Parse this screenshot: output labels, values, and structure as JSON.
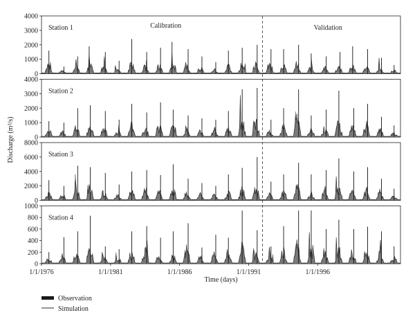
{
  "chart_data": {
    "type": "area",
    "x_range": [
      "1/1/1976",
      "12/31/2001"
    ],
    "x_ticks": [
      "1/1/1976",
      "1/1/1981",
      "1/1/1986",
      "1/1/1991",
      "1/1/1996"
    ],
    "xlabel": "Time (days)",
    "ylabel": "Discharge (m³/s)",
    "split_date": "1/1/1992",
    "periods": [
      "Calibration",
      "Validation"
    ],
    "legend": {
      "placement": "bottom-left",
      "entries": [
        {
          "label": "Observation",
          "style": "filled",
          "color": "#1a1a1a"
        },
        {
          "label": "Simulation",
          "style": "line",
          "color": "#2a2a2a"
        }
      ]
    },
    "panels": [
      {
        "station": "Station 1",
        "ylim": [
          0,
          4000
        ],
        "y_ticks": [
          "0",
          "1000",
          "2000",
          "3000",
          "4000"
        ],
        "peaks": [
          {
            "date": "1976-07",
            "value": 1600
          },
          {
            "date": "1977-08",
            "value": 500
          },
          {
            "date": "1978-08",
            "value": 1200
          },
          {
            "date": "1979-06",
            "value": 1900
          },
          {
            "date": "1980-08",
            "value": 1500
          },
          {
            "date": "1981-08",
            "value": 900
          },
          {
            "date": "1982-07",
            "value": 2400
          },
          {
            "date": "1983-08",
            "value": 1500
          },
          {
            "date": "1984-08",
            "value": 1800
          },
          {
            "date": "1985-06",
            "value": 2200
          },
          {
            "date": "1986-08",
            "value": 1700
          },
          {
            "date": "1987-08",
            "value": 1200
          },
          {
            "date": "1988-08",
            "value": 800
          },
          {
            "date": "1989-07",
            "value": 1600
          },
          {
            "date": "1990-07",
            "value": 1800
          },
          {
            "date": "1991-08",
            "value": 2000
          },
          {
            "date": "1992-08",
            "value": 1700
          },
          {
            "date": "1993-07",
            "value": 1700
          },
          {
            "date": "1994-08",
            "value": 2000
          },
          {
            "date": "1995-07",
            "value": 1400
          },
          {
            "date": "1996-08",
            "value": 1200
          },
          {
            "date": "1997-08",
            "value": 1500
          },
          {
            "date": "1998-07",
            "value": 1900
          },
          {
            "date": "1999-08",
            "value": 1700
          },
          {
            "date": "2000-08",
            "value": 1100
          },
          {
            "date": "2001-07",
            "value": 600
          }
        ]
      },
      {
        "station": "Station 2",
        "ylim": [
          0,
          4000
        ],
        "y_ticks": [
          "0",
          "1000",
          "2000",
          "3000",
          "4000"
        ],
        "peaks": [
          {
            "date": "1976-07",
            "value": 1100
          },
          {
            "date": "1977-08",
            "value": 1000
          },
          {
            "date": "1978-08",
            "value": 2000
          },
          {
            "date": "1979-07",
            "value": 2200
          },
          {
            "date": "1980-08",
            "value": 1800
          },
          {
            "date": "1981-08",
            "value": 1200
          },
          {
            "date": "1982-07",
            "value": 2300
          },
          {
            "date": "1983-08",
            "value": 1700
          },
          {
            "date": "1984-08",
            "value": 2400
          },
          {
            "date": "1985-07",
            "value": 1900
          },
          {
            "date": "1986-08",
            "value": 1500
          },
          {
            "date": "1987-08",
            "value": 1300
          },
          {
            "date": "1988-08",
            "value": 1200
          },
          {
            "date": "1989-07",
            "value": 1800
          },
          {
            "date": "1990-07",
            "value": 3300
          },
          {
            "date": "1991-08",
            "value": 3400
          },
          {
            "date": "1992-08",
            "value": 1200
          },
          {
            "date": "1993-07",
            "value": 2000
          },
          {
            "date": "1994-08",
            "value": 3300
          },
          {
            "date": "1995-07",
            "value": 1500
          },
          {
            "date": "1996-08",
            "value": 1900
          },
          {
            "date": "1997-07",
            "value": 3200
          },
          {
            "date": "1998-08",
            "value": 2000
          },
          {
            "date": "1999-08",
            "value": 2300
          },
          {
            "date": "2000-08",
            "value": 1400
          },
          {
            "date": "2001-07",
            "value": 800
          }
        ]
      },
      {
        "station": "Station 3",
        "ylim": [
          0,
          8000
        ],
        "y_ticks": [
          "0",
          "2000",
          "4000",
          "6000",
          "8000"
        ],
        "peaks": [
          {
            "date": "1976-07",
            "value": 2800
          },
          {
            "date": "1977-08",
            "value": 2000
          },
          {
            "date": "1978-08",
            "value": 4800
          },
          {
            "date": "1979-07",
            "value": 4600
          },
          {
            "date": "1980-08",
            "value": 3800
          },
          {
            "date": "1981-08",
            "value": 2200
          },
          {
            "date": "1982-07",
            "value": 4000
          },
          {
            "date": "1983-08",
            "value": 4200
          },
          {
            "date": "1984-08",
            "value": 3500
          },
          {
            "date": "1985-07",
            "value": 5000
          },
          {
            "date": "1986-08",
            "value": 3000
          },
          {
            "date": "1987-08",
            "value": 2400
          },
          {
            "date": "1988-08",
            "value": 2000
          },
          {
            "date": "1989-07",
            "value": 3600
          },
          {
            "date": "1990-07",
            "value": 4500
          },
          {
            "date": "1991-08",
            "value": 6000
          },
          {
            "date": "1992-08",
            "value": 2600
          },
          {
            "date": "1993-07",
            "value": 3600
          },
          {
            "date": "1994-08",
            "value": 5200
          },
          {
            "date": "1995-07",
            "value": 3600
          },
          {
            "date": "1996-08",
            "value": 4200
          },
          {
            "date": "1997-07",
            "value": 5800
          },
          {
            "date": "1998-08",
            "value": 4000
          },
          {
            "date": "1999-08",
            "value": 4600
          },
          {
            "date": "2000-08",
            "value": 3000
          },
          {
            "date": "2001-07",
            "value": 1600
          }
        ]
      },
      {
        "station": "Station 4",
        "ylim": [
          0,
          1000
        ],
        "y_ticks": [
          "0",
          "200",
          "400",
          "600",
          "800",
          "1000"
        ],
        "peaks": [
          {
            "date": "1976-07",
            "value": 200
          },
          {
            "date": "1977-08",
            "value": 460
          },
          {
            "date": "1978-08",
            "value": 560
          },
          {
            "date": "1979-07",
            "value": 830
          },
          {
            "date": "1980-08",
            "value": 300
          },
          {
            "date": "1981-08",
            "value": 250
          },
          {
            "date": "1982-07",
            "value": 560
          },
          {
            "date": "1983-08",
            "value": 650
          },
          {
            "date": "1984-08",
            "value": 450
          },
          {
            "date": "1985-07",
            "value": 560
          },
          {
            "date": "1986-08",
            "value": 700
          },
          {
            "date": "1987-08",
            "value": 280
          },
          {
            "date": "1988-08",
            "value": 500
          },
          {
            "date": "1989-07",
            "value": 450
          },
          {
            "date": "1990-07",
            "value": 920
          },
          {
            "date": "1991-08",
            "value": 580
          },
          {
            "date": "1992-08",
            "value": 300
          },
          {
            "date": "1993-07",
            "value": 650
          },
          {
            "date": "1994-08",
            "value": 920
          },
          {
            "date": "1995-07",
            "value": 920
          },
          {
            "date": "1996-08",
            "value": 600
          },
          {
            "date": "1997-07",
            "value": 760
          },
          {
            "date": "1998-08",
            "value": 600
          },
          {
            "date": "1999-08",
            "value": 640
          },
          {
            "date": "2000-08",
            "value": 560
          },
          {
            "date": "2001-07",
            "value": 300
          }
        ]
      }
    ]
  }
}
